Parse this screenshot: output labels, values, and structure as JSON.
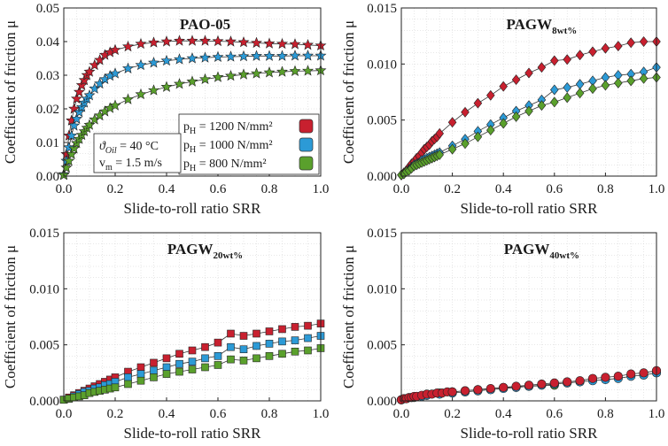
{
  "chart_data": [
    {
      "type": "line",
      "title": "PAO-05",
      "title_sub": "",
      "xlabel": "Slide-to-roll ratio SRR",
      "ylabel": "Coefficient of friction μ",
      "xlim": [
        0,
        1.0
      ],
      "ylim": [
        0,
        0.05
      ],
      "xticks": [
        "0.0",
        "0.2",
        "0.4",
        "0.6",
        "0.8",
        "1.0"
      ],
      "yticks": [
        "0.00",
        "0.01",
        "0.02",
        "0.03",
        "0.04",
        "0.05"
      ],
      "marker": "star",
      "series": [
        {
          "name": "pH = 1200 N/mm²",
          "color": "#c8202f",
          "x": [
            0.0,
            0.01,
            0.02,
            0.03,
            0.04,
            0.05,
            0.06,
            0.07,
            0.08,
            0.09,
            0.1,
            0.12,
            0.14,
            0.16,
            0.18,
            0.2,
            0.25,
            0.3,
            0.35,
            0.4,
            0.45,
            0.5,
            0.55,
            0.6,
            0.65,
            0.7,
            0.75,
            0.8,
            0.85,
            0.9,
            0.95,
            1.0
          ],
          "y": [
            0.0005,
            0.0065,
            0.012,
            0.0165,
            0.02,
            0.023,
            0.025,
            0.027,
            0.0285,
            0.03,
            0.031,
            0.033,
            0.0345,
            0.036,
            0.0368,
            0.0375,
            0.0385,
            0.0393,
            0.0397,
            0.04,
            0.0402,
            0.0402,
            0.0402,
            0.0401,
            0.04,
            0.0398,
            0.0396,
            0.0394,
            0.0393,
            0.0392,
            0.039,
            0.0388
          ]
        },
        {
          "name": "pH = 1000 N/mm²",
          "color": "#2c9ad6",
          "x": [
            0.0,
            0.01,
            0.02,
            0.03,
            0.04,
            0.05,
            0.06,
            0.07,
            0.08,
            0.09,
            0.1,
            0.12,
            0.14,
            0.16,
            0.18,
            0.2,
            0.25,
            0.3,
            0.35,
            0.4,
            0.45,
            0.5,
            0.55,
            0.6,
            0.65,
            0.7,
            0.75,
            0.8,
            0.85,
            0.9,
            0.95,
            1.0
          ],
          "y": [
            0.0005,
            0.0045,
            0.0085,
            0.012,
            0.015,
            0.017,
            0.019,
            0.0205,
            0.0218,
            0.023,
            0.024,
            0.026,
            0.0275,
            0.0288,
            0.0298,
            0.0305,
            0.032,
            0.033,
            0.0337,
            0.0343,
            0.0347,
            0.035,
            0.0352,
            0.0354,
            0.0355,
            0.0356,
            0.0357,
            0.0357,
            0.0357,
            0.0358,
            0.0358,
            0.0358
          ]
        },
        {
          "name": "pH = 800 N/mm²",
          "color": "#5aa02c",
          "x": [
            0.0,
            0.01,
            0.02,
            0.03,
            0.04,
            0.05,
            0.06,
            0.07,
            0.08,
            0.09,
            0.1,
            0.12,
            0.14,
            0.16,
            0.18,
            0.2,
            0.25,
            0.3,
            0.35,
            0.4,
            0.45,
            0.5,
            0.55,
            0.6,
            0.65,
            0.7,
            0.75,
            0.8,
            0.85,
            0.9,
            0.95,
            1.0
          ],
          "y": [
            0.0003,
            0.0025,
            0.0045,
            0.0065,
            0.0082,
            0.0098,
            0.011,
            0.0122,
            0.0133,
            0.0143,
            0.0152,
            0.0168,
            0.018,
            0.0192,
            0.0202,
            0.021,
            0.0228,
            0.0243,
            0.0255,
            0.0265,
            0.0274,
            0.0281,
            0.0288,
            0.0294,
            0.0298,
            0.0302,
            0.0305,
            0.0308,
            0.031,
            0.0312,
            0.0313,
            0.0314
          ]
        }
      ],
      "legend": {
        "placement": "bottom-right",
        "entries": [
          {
            "prefix": "p",
            "sub": "H",
            "text": " = 1200 N/mm²",
            "color": "#c8202f"
          },
          {
            "prefix": "p",
            "sub": "H",
            "text": " = 1000 N/mm²",
            "color": "#2c9ad6"
          },
          {
            "prefix": "p",
            "sub": "H",
            "text": " = 800 N/mm²",
            "color": "#5aa02c"
          }
        ]
      },
      "annotation": {
        "line1_symbol": "ϑ",
        "line1_sub": "Oil",
        "line1_text": " = 40 °C",
        "line2_symbol": "v",
        "line2_sub": "m",
        "line2_text": " = 1.5 m/s"
      }
    },
    {
      "type": "line",
      "title": "PAGW",
      "title_sub": "8wt%",
      "xlabel": "Slide-to-roll ratio SRR",
      "ylabel": "Coefficient of friction μ",
      "xlim": [
        0,
        1.0
      ],
      "ylim": [
        0,
        0.015
      ],
      "xticks": [
        "0.0",
        "0.2",
        "0.4",
        "0.6",
        "0.8",
        "1.0"
      ],
      "yticks": [
        "0.000",
        "0.005",
        "0.010",
        "0.015"
      ],
      "marker": "diamond",
      "series": [
        {
          "name": "pH = 1200 N/mm²",
          "color": "#c8202f",
          "x": [
            0.0,
            0.01,
            0.02,
            0.03,
            0.04,
            0.05,
            0.06,
            0.07,
            0.08,
            0.09,
            0.1,
            0.11,
            0.12,
            0.13,
            0.14,
            0.15,
            0.2,
            0.25,
            0.3,
            0.35,
            0.4,
            0.45,
            0.5,
            0.55,
            0.6,
            0.65,
            0.7,
            0.75,
            0.8,
            0.85,
            0.9,
            0.95,
            1.0
          ],
          "y": [
            0.0001,
            0.0003,
            0.0005,
            0.0008,
            0.0011,
            0.0013,
            0.0016,
            0.0018,
            0.0021,
            0.0024,
            0.0026,
            0.0028,
            0.0031,
            0.0033,
            0.0035,
            0.0038,
            0.0048,
            0.0057,
            0.0065,
            0.0072,
            0.008,
            0.0086,
            0.0092,
            0.0097,
            0.0103,
            0.0104,
            0.0108,
            0.0111,
            0.0114,
            0.0116,
            0.0119,
            0.012,
            0.012
          ]
        },
        {
          "name": "pH = 1000 N/mm²",
          "color": "#2c9ad6",
          "x": [
            0.0,
            0.01,
            0.02,
            0.03,
            0.04,
            0.05,
            0.06,
            0.07,
            0.08,
            0.09,
            0.1,
            0.11,
            0.12,
            0.13,
            0.14,
            0.15,
            0.2,
            0.25,
            0.3,
            0.35,
            0.4,
            0.45,
            0.5,
            0.55,
            0.6,
            0.65,
            0.7,
            0.75,
            0.8,
            0.85,
            0.9,
            0.95,
            1.0
          ],
          "y": [
            0.0001,
            0.0002,
            0.0004,
            0.0006,
            0.0008,
            0.001,
            0.0011,
            0.0012,
            0.0014,
            0.0015,
            0.0016,
            0.0017,
            0.0018,
            0.0019,
            0.002,
            0.0021,
            0.0027,
            0.0033,
            0.004,
            0.0046,
            0.0052,
            0.0058,
            0.0063,
            0.0068,
            0.0077,
            0.0079,
            0.0082,
            0.0085,
            0.0088,
            0.009,
            0.0091,
            0.0093,
            0.0097
          ]
        },
        {
          "name": "pH = 800 N/mm²",
          "color": "#5aa02c",
          "x": [
            0.0,
            0.01,
            0.02,
            0.03,
            0.04,
            0.05,
            0.06,
            0.07,
            0.08,
            0.09,
            0.1,
            0.11,
            0.12,
            0.13,
            0.14,
            0.15,
            0.2,
            0.25,
            0.3,
            0.35,
            0.4,
            0.45,
            0.5,
            0.55,
            0.6,
            0.65,
            0.7,
            0.75,
            0.8,
            0.85,
            0.9,
            0.95,
            1.0
          ],
          "y": [
            0.0001,
            0.0002,
            0.0004,
            0.0005,
            0.0007,
            0.0009,
            0.001,
            0.0011,
            0.0012,
            0.0013,
            0.0014,
            0.0015,
            0.0016,
            0.0017,
            0.0018,
            0.0019,
            0.0024,
            0.0029,
            0.0035,
            0.0041,
            0.0047,
            0.0053,
            0.0058,
            0.0063,
            0.0066,
            0.007,
            0.0074,
            0.0078,
            0.0081,
            0.0083,
            0.0085,
            0.0087,
            0.0088
          ]
        }
      ]
    },
    {
      "type": "line",
      "title": "PAGW",
      "title_sub": "20wt%",
      "xlabel": "Slide-to-roll ratio SRR",
      "ylabel": "Coefficient of friction μ",
      "xlim": [
        0,
        1.0
      ],
      "ylim": [
        0,
        0.015
      ],
      "xticks": [
        "0.0",
        "0.2",
        "0.4",
        "0.6",
        "0.8",
        "1.0"
      ],
      "yticks": [
        "0.000",
        "0.005",
        "0.010",
        "0.015"
      ],
      "marker": "square",
      "series": [
        {
          "name": "pH = 1200 N/mm²",
          "color": "#c8202f",
          "x": [
            0.0,
            0.02,
            0.04,
            0.06,
            0.08,
            0.1,
            0.12,
            0.14,
            0.16,
            0.18,
            0.2,
            0.25,
            0.3,
            0.35,
            0.4,
            0.45,
            0.5,
            0.55,
            0.6,
            0.65,
            0.7,
            0.75,
            0.8,
            0.85,
            0.9,
            0.95,
            1.0
          ],
          "y": [
            0.0001,
            0.0003,
            0.0005,
            0.0007,
            0.0009,
            0.0011,
            0.0013,
            0.0015,
            0.0017,
            0.0019,
            0.0021,
            0.0026,
            0.003,
            0.0034,
            0.0038,
            0.0042,
            0.0045,
            0.0048,
            0.0052,
            0.006,
            0.0058,
            0.006,
            0.0062,
            0.0064,
            0.0066,
            0.0067,
            0.0069
          ]
        },
        {
          "name": "pH = 1000 N/mm²",
          "color": "#2c9ad6",
          "x": [
            0.0,
            0.02,
            0.04,
            0.06,
            0.08,
            0.1,
            0.12,
            0.14,
            0.16,
            0.18,
            0.2,
            0.25,
            0.3,
            0.35,
            0.4,
            0.45,
            0.5,
            0.55,
            0.6,
            0.65,
            0.7,
            0.75,
            0.8,
            0.85,
            0.9,
            0.95,
            1.0
          ],
          "y": [
            0.0001,
            0.0002,
            0.0004,
            0.0006,
            0.0008,
            0.0009,
            0.0011,
            0.0012,
            0.0014,
            0.0015,
            0.0017,
            0.0021,
            0.0024,
            0.0027,
            0.003,
            0.0033,
            0.0035,
            0.0038,
            0.004,
            0.0048,
            0.0046,
            0.0049,
            0.0051,
            0.0053,
            0.0054,
            0.0056,
            0.0058
          ]
        },
        {
          "name": "pH = 800 N/mm²",
          "color": "#5aa02c",
          "x": [
            0.0,
            0.02,
            0.04,
            0.06,
            0.08,
            0.1,
            0.12,
            0.14,
            0.16,
            0.18,
            0.2,
            0.25,
            0.3,
            0.35,
            0.4,
            0.45,
            0.5,
            0.55,
            0.6,
            0.65,
            0.7,
            0.75,
            0.8,
            0.85,
            0.9,
            0.95,
            1.0
          ],
          "y": [
            0.0001,
            0.0002,
            0.0003,
            0.0004,
            0.0005,
            0.0007,
            0.0008,
            0.0009,
            0.001,
            0.0011,
            0.0012,
            0.0015,
            0.0018,
            0.0021,
            0.0024,
            0.0026,
            0.0028,
            0.003,
            0.0032,
            0.0037,
            0.0036,
            0.0038,
            0.004,
            0.0042,
            0.0044,
            0.0045,
            0.0047
          ]
        }
      ]
    },
    {
      "type": "line",
      "title": "PAGW",
      "title_sub": "40wt%",
      "xlabel": "Slide-to-roll ratio SRR",
      "ylabel": "Coefficient of friction μ",
      "xlim": [
        0,
        1.0
      ],
      "ylim": [
        0,
        0.015
      ],
      "xticks": [
        "0.0",
        "0.2",
        "0.4",
        "0.6",
        "0.8",
        "1.0"
      ],
      "yticks": [
        "0.000",
        "0.005",
        "0.010",
        "0.015"
      ],
      "marker": "circle",
      "series": [
        {
          "name": "pH = 800 N/mm²",
          "color": "#5aa02c",
          "x": [
            0.0,
            0.05,
            0.1,
            0.15,
            0.2,
            0.25,
            0.3,
            0.4,
            0.5,
            0.6
          ],
          "y": [
            0.0001,
            0.0003,
            0.0005,
            0.0007,
            0.0008,
            0.0009,
            0.001,
            0.0012,
            0.0013,
            0.0014
          ]
        },
        {
          "name": "pH = 1000 N/mm²",
          "color": "#2c9ad6",
          "x": [
            0.0,
            0.02,
            0.04,
            0.06,
            0.08,
            0.1,
            0.15,
            0.2,
            0.25,
            0.3,
            0.35,
            0.4,
            0.45,
            0.5,
            0.55,
            0.6,
            0.65,
            0.7,
            0.75,
            0.8,
            0.85,
            0.9,
            0.95,
            1.0
          ],
          "y": [
            0.0001,
            0.0002,
            0.0003,
            0.0004,
            0.0004,
            0.0005,
            0.0006,
            0.0007,
            0.0008,
            0.0009,
            0.001,
            0.0011,
            0.0012,
            0.0013,
            0.0014,
            0.0015,
            0.0016,
            0.0017,
            0.0018,
            0.0019,
            0.002,
            0.0022,
            0.0023,
            0.0025
          ]
        },
        {
          "name": "pH = 1200 N/mm²",
          "color": "#c8202f",
          "x": [
            0.0,
            0.01,
            0.02,
            0.03,
            0.04,
            0.05,
            0.06,
            0.08,
            0.1,
            0.12,
            0.14,
            0.16,
            0.18,
            0.2,
            0.25,
            0.3,
            0.35,
            0.4,
            0.45,
            0.5,
            0.55,
            0.6,
            0.65,
            0.7,
            0.75,
            0.8,
            0.85,
            0.9,
            0.95,
            1.0
          ],
          "y": [
            0.0001,
            0.0002,
            0.0002,
            0.0003,
            0.0003,
            0.0004,
            0.0004,
            0.0005,
            0.0006,
            0.0006,
            0.0007,
            0.0007,
            0.0008,
            0.0008,
            0.0009,
            0.001,
            0.0011,
            0.0012,
            0.0013,
            0.0014,
            0.0015,
            0.0016,
            0.0017,
            0.0018,
            0.002,
            0.0021,
            0.0022,
            0.0024,
            0.0025,
            0.0027
          ]
        }
      ]
    }
  ]
}
